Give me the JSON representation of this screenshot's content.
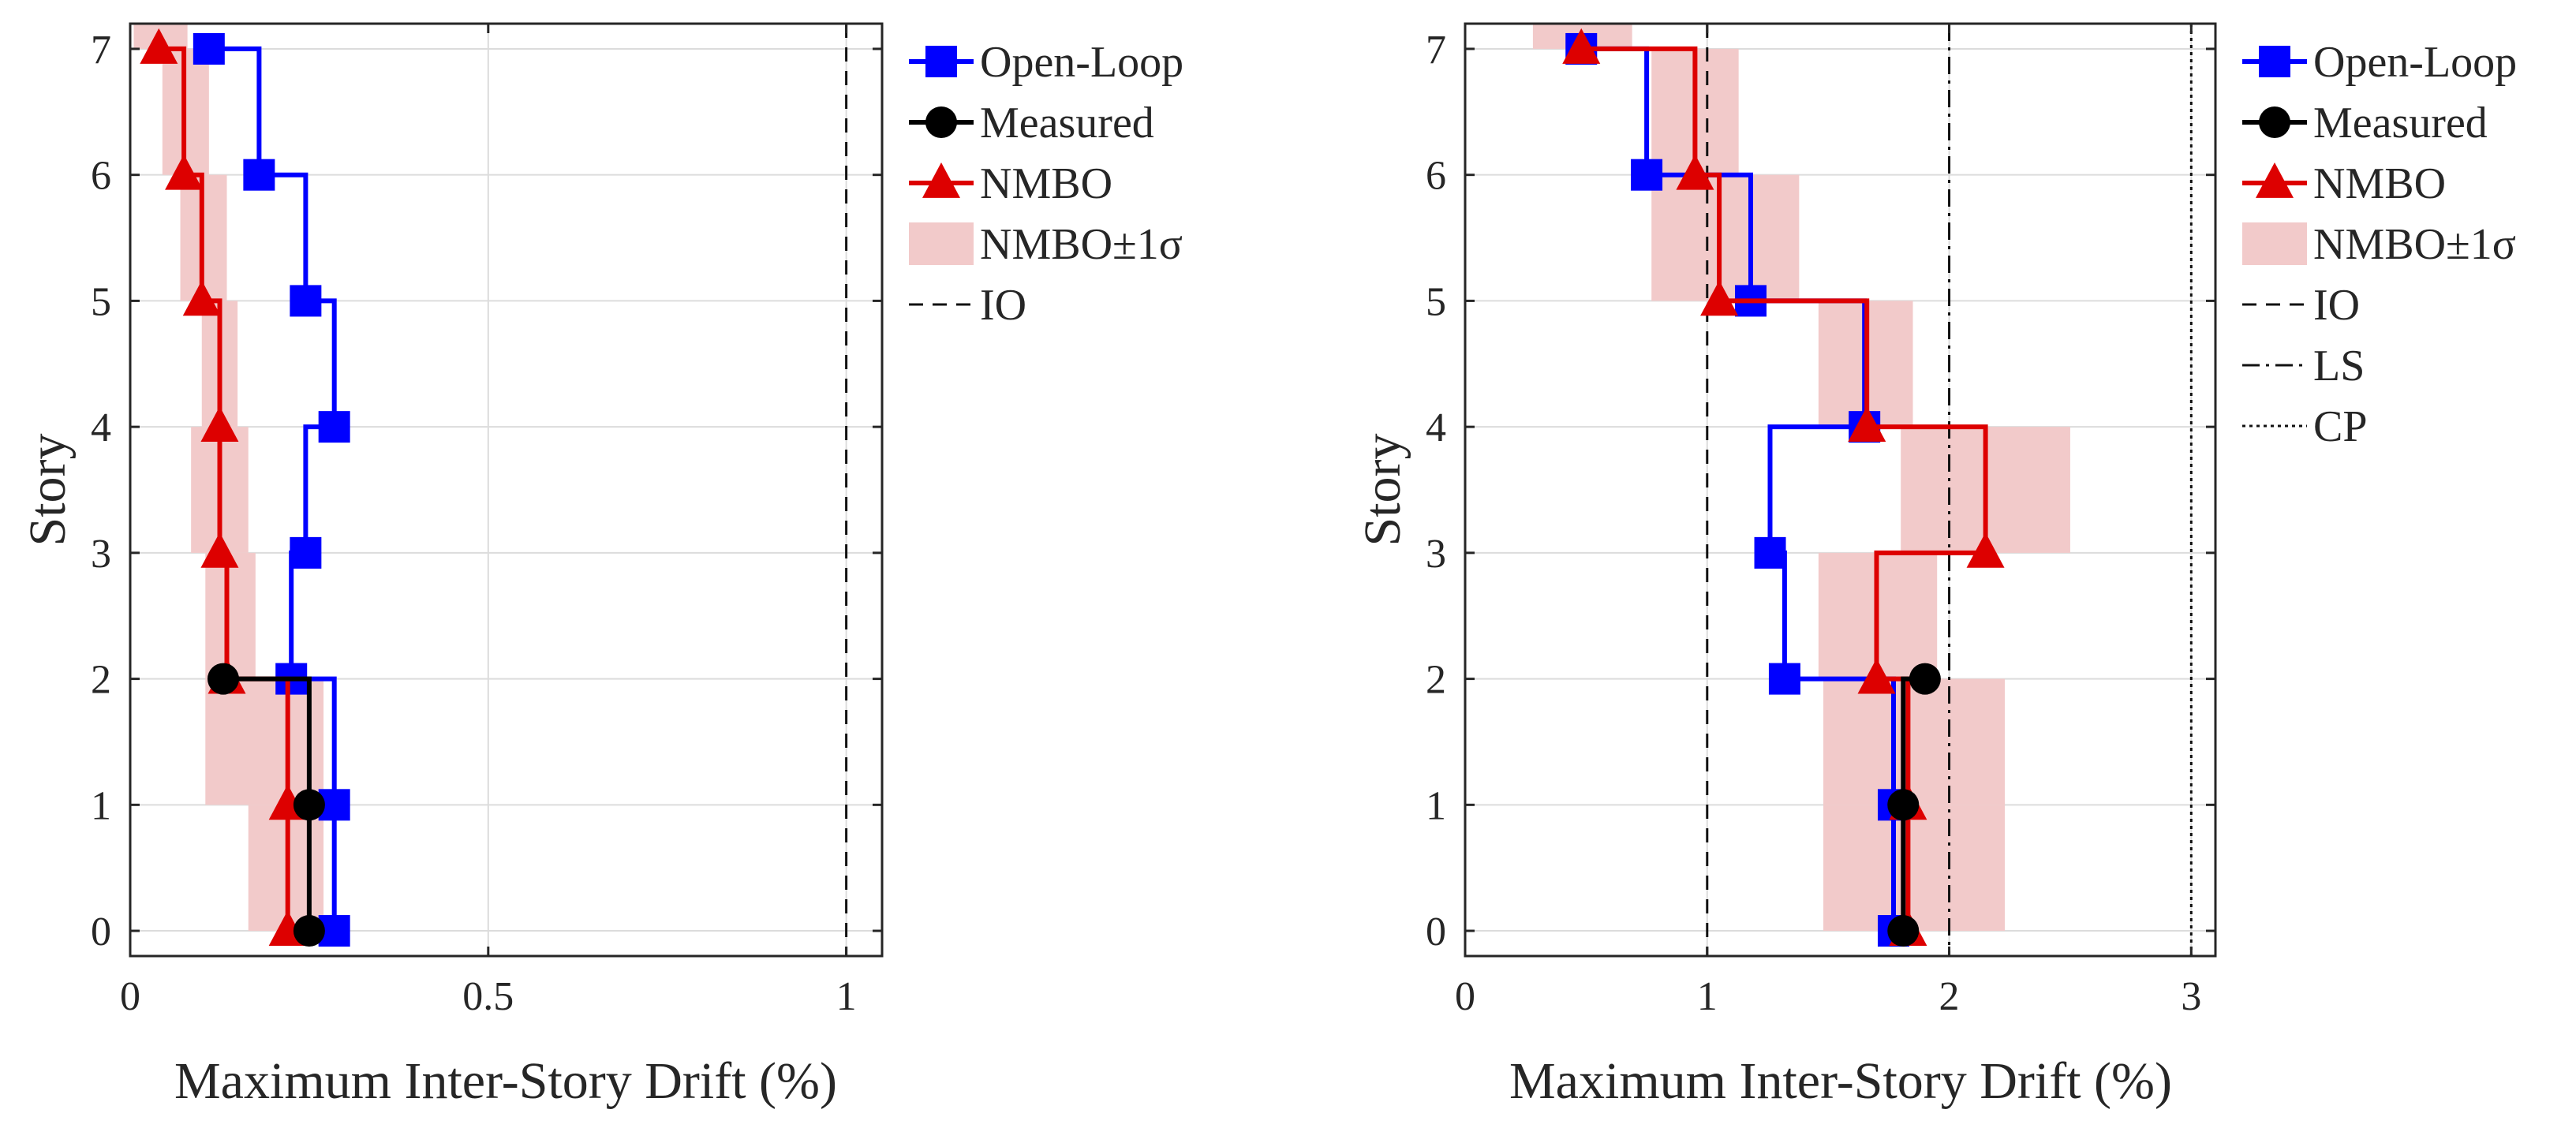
{
  "chart_data": [
    {
      "type": "line",
      "step": true,
      "xlabel": "Maximum Inter-Story Drift (%)",
      "ylabel": "Story",
      "xlim": [
        0,
        1.05
      ],
      "ylim": [
        -0.2,
        7.2
      ],
      "xticks": [
        0,
        0.5,
        1
      ],
      "xtick_labels": [
        "0",
        "0.5",
        "1"
      ],
      "yticks": [
        0,
        1,
        2,
        3,
        4,
        5,
        6,
        7
      ],
      "grid": true,
      "stories": [
        0,
        1,
        2,
        3,
        4,
        5,
        6,
        7
      ],
      "series": [
        {
          "name": "Open-Loop",
          "color": "#0000ff",
          "marker": "square",
          "values": [
            0.285,
            0.285,
            0.225,
            0.245,
            0.285,
            0.245,
            0.18,
            0.11
          ]
        },
        {
          "name": "Measured",
          "color": "#000000",
          "marker": "circle",
          "values": [
            0.25,
            0.25,
            0.13,
            null,
            null,
            null,
            null,
            null
          ]
        },
        {
          "name": "NMBO",
          "color": "#dd0000",
          "marker": "triangle",
          "values": [
            0.22,
            0.22,
            0.135,
            0.125,
            0.125,
            0.1,
            0.075,
            0.04
          ],
          "band": {
            "lower": [
              0.165,
              0.105,
              0.105,
              0.085,
              0.1,
              0.07,
              0.045,
              0.005
            ],
            "upper": [
              0.27,
              0.27,
              0.175,
              0.165,
              0.15,
              0.135,
              0.11,
              0.08
            ]
          }
        }
      ],
      "limits": [
        {
          "name": "IO",
          "value": 1.0,
          "style": "dashed"
        }
      ],
      "legend": {
        "position": "outside-right",
        "entries": [
          "Open-Loop",
          "Measured",
          "NMBO",
          "NMBO±1σ",
          "IO"
        ]
      }
    },
    {
      "type": "line",
      "step": true,
      "xlabel": "Maximum Inter-Story Drift (%)",
      "ylabel": "Story",
      "xlim": [
        0,
        3.1
      ],
      "ylim": [
        -0.2,
        7.2
      ],
      "xticks": [
        0,
        1,
        2,
        3
      ],
      "xtick_labels": [
        "0",
        "1",
        "2",
        "3"
      ],
      "yticks": [
        0,
        1,
        2,
        3,
        4,
        5,
        6,
        7
      ],
      "grid": true,
      "stories": [
        0,
        1,
        2,
        3,
        4,
        5,
        6,
        7
      ],
      "series": [
        {
          "name": "Open-Loop",
          "color": "#0000ff",
          "marker": "square",
          "values": [
            1.77,
            1.77,
            1.32,
            1.26,
            1.65,
            1.18,
            0.75,
            0.48
          ]
        },
        {
          "name": "Measured",
          "color": "#000000",
          "marker": "circle",
          "values": [
            1.81,
            1.81,
            1.9,
            null,
            null,
            null,
            null,
            null
          ]
        },
        {
          "name": "NMBO",
          "color": "#dd0000",
          "marker": "triangle",
          "values": [
            1.83,
            1.83,
            1.7,
            2.15,
            1.66,
            1.05,
            0.95,
            0.48
          ],
          "band": {
            "lower": [
              1.48,
              1.48,
              1.46,
              1.8,
              1.46,
              0.77,
              0.77,
              0.28
            ],
            "upper": [
              2.23,
              2.23,
              1.95,
              2.5,
              1.85,
              1.38,
              1.13,
              0.69
            ]
          }
        }
      ],
      "limits": [
        {
          "name": "IO",
          "value": 1.0,
          "style": "dashed"
        },
        {
          "name": "LS",
          "value": 2.0,
          "style": "dashdot"
        },
        {
          "name": "CP",
          "value": 3.0,
          "style": "dotted"
        }
      ],
      "legend": {
        "position": "outside-right",
        "entries": [
          "Open-Loop",
          "Measured",
          "NMBO",
          "NMBO±1σ",
          "IO",
          "LS",
          "CP"
        ]
      }
    }
  ]
}
